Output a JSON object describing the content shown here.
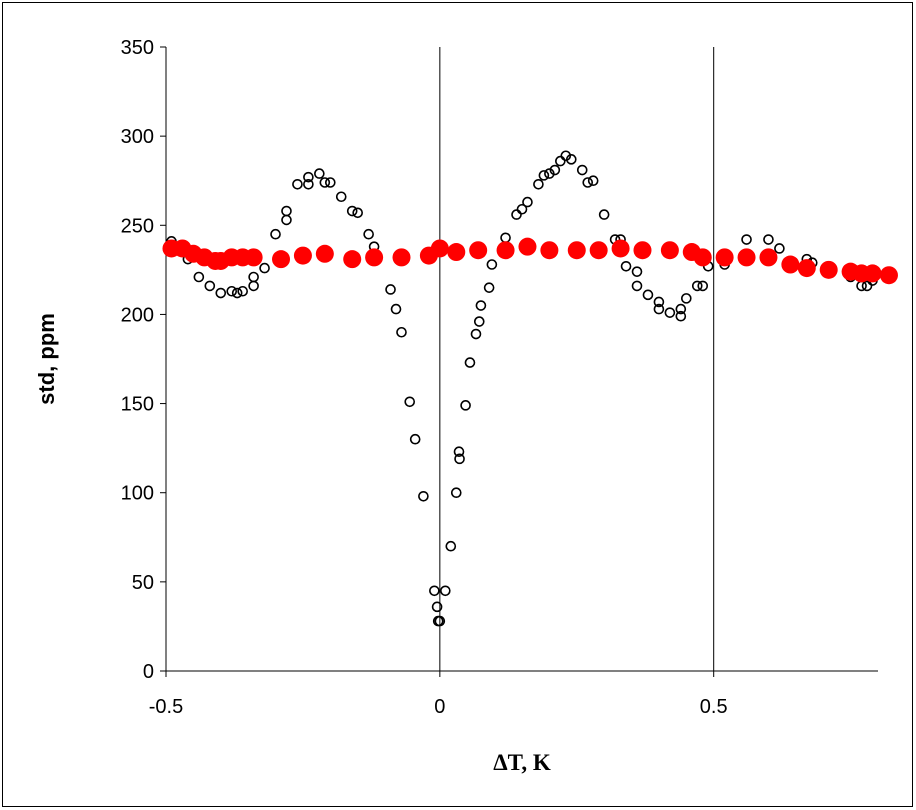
{
  "chart_data": {
    "type": "scatter",
    "xlabel": "ΔT, K",
    "ylabel": "std, ppm",
    "xlim": [
      -0.5,
      0.8
    ],
    "ylim": [
      0,
      350
    ],
    "x_ticks": [
      "-0.5",
      "0",
      "0.5"
    ],
    "y_ticks": [
      "0",
      "50",
      "100",
      "150",
      "200",
      "250",
      "300",
      "350"
    ],
    "vertical_gridlines_at": [
      0,
      0.5
    ],
    "colors": {
      "open_markers": "#000000",
      "filled_markers": "#ff0000"
    },
    "series": [
      {
        "marker": "open-circle",
        "points": [
          [
            -0.49,
            241
          ],
          [
            -0.48,
            238
          ],
          [
            -0.46,
            231
          ],
          [
            -0.44,
            221
          ],
          [
            -0.42,
            216
          ],
          [
            -0.4,
            212
          ],
          [
            -0.38,
            213
          ],
          [
            -0.37,
            212
          ],
          [
            -0.36,
            213
          ],
          [
            -0.34,
            216
          ],
          [
            -0.34,
            221
          ],
          [
            -0.32,
            226
          ],
          [
            -0.3,
            245
          ],
          [
            -0.28,
            253
          ],
          [
            -0.28,
            258
          ],
          [
            -0.26,
            273
          ],
          [
            -0.24,
            273
          ],
          [
            -0.24,
            277
          ],
          [
            -0.22,
            279
          ],
          [
            -0.21,
            274
          ],
          [
            -0.2,
            274
          ],
          [
            -0.18,
            266
          ],
          [
            -0.16,
            258
          ],
          [
            -0.15,
            257
          ],
          [
            -0.13,
            245
          ],
          [
            -0.12,
            238
          ],
          [
            -0.09,
            214
          ],
          [
            -0.08,
            203
          ],
          [
            -0.07,
            190
          ],
          [
            -0.055,
            151
          ],
          [
            -0.045,
            130
          ],
          [
            -0.03,
            98
          ],
          [
            -0.01,
            45
          ],
          [
            -0.005,
            36
          ],
          [
            -0.003,
            28
          ],
          [
            0.0,
            28
          ],
          [
            0.01,
            45
          ],
          [
            0.02,
            70
          ],
          [
            0.03,
            100
          ],
          [
            0.035,
            123
          ],
          [
            0.036,
            119
          ],
          [
            0.047,
            149
          ],
          [
            0.055,
            173
          ],
          [
            0.066,
            189
          ],
          [
            0.072,
            196
          ],
          [
            0.075,
            205
          ],
          [
            0.09,
            215
          ],
          [
            0.095,
            228
          ],
          [
            0.12,
            243
          ],
          [
            0.14,
            256
          ],
          [
            0.15,
            259
          ],
          [
            0.16,
            263
          ],
          [
            0.18,
            273
          ],
          [
            0.19,
            278
          ],
          [
            0.2,
            279
          ],
          [
            0.21,
            281
          ],
          [
            0.22,
            286
          ],
          [
            0.23,
            289
          ],
          [
            0.24,
            287
          ],
          [
            0.26,
            281
          ],
          [
            0.27,
            274
          ],
          [
            0.28,
            275
          ],
          [
            0.3,
            256
          ],
          [
            0.32,
            242
          ],
          [
            0.33,
            242
          ],
          [
            0.34,
            227
          ],
          [
            0.36,
            224
          ],
          [
            0.36,
            216
          ],
          [
            0.38,
            211
          ],
          [
            0.4,
            207
          ],
          [
            0.4,
            203
          ],
          [
            0.42,
            201
          ],
          [
            0.44,
            203
          ],
          [
            0.44,
            199
          ],
          [
            0.45,
            209
          ],
          [
            0.47,
            216
          ],
          [
            0.48,
            216
          ],
          [
            0.49,
            227
          ],
          [
            0.52,
            228
          ],
          [
            0.56,
            242
          ],
          [
            0.6,
            242
          ],
          [
            0.62,
            237
          ],
          [
            0.67,
            231
          ],
          [
            0.68,
            229
          ],
          [
            0.71,
            225
          ],
          [
            0.75,
            221
          ],
          [
            0.77,
            216
          ],
          [
            0.78,
            216
          ],
          [
            0.79,
            219
          ]
        ]
      },
      {
        "marker": "filled-circle",
        "points": [
          [
            -0.49,
            237
          ],
          [
            -0.47,
            237
          ],
          [
            -0.45,
            234
          ],
          [
            -0.43,
            232
          ],
          [
            -0.41,
            230
          ],
          [
            -0.4,
            230
          ],
          [
            -0.38,
            232
          ],
          [
            -0.36,
            232
          ],
          [
            -0.34,
            232
          ],
          [
            -0.29,
            231
          ],
          [
            -0.25,
            233
          ],
          [
            -0.21,
            234
          ],
          [
            -0.16,
            231
          ],
          [
            -0.12,
            232
          ],
          [
            -0.07,
            232
          ],
          [
            -0.02,
            233
          ],
          [
            0.0,
            237
          ],
          [
            0.03,
            235
          ],
          [
            0.07,
            236
          ],
          [
            0.12,
            236
          ],
          [
            0.16,
            238
          ],
          [
            0.2,
            236
          ],
          [
            0.25,
            236
          ],
          [
            0.29,
            236
          ],
          [
            0.33,
            237
          ],
          [
            0.37,
            236
          ],
          [
            0.42,
            236
          ],
          [
            0.46,
            235
          ],
          [
            0.48,
            232
          ],
          [
            0.52,
            232
          ],
          [
            0.56,
            232
          ],
          [
            0.6,
            232
          ],
          [
            0.64,
            228
          ],
          [
            0.67,
            226
          ],
          [
            0.71,
            225
          ],
          [
            0.75,
            224
          ],
          [
            0.77,
            223
          ],
          [
            0.79,
            223
          ],
          [
            0.82,
            222
          ]
        ]
      }
    ]
  }
}
